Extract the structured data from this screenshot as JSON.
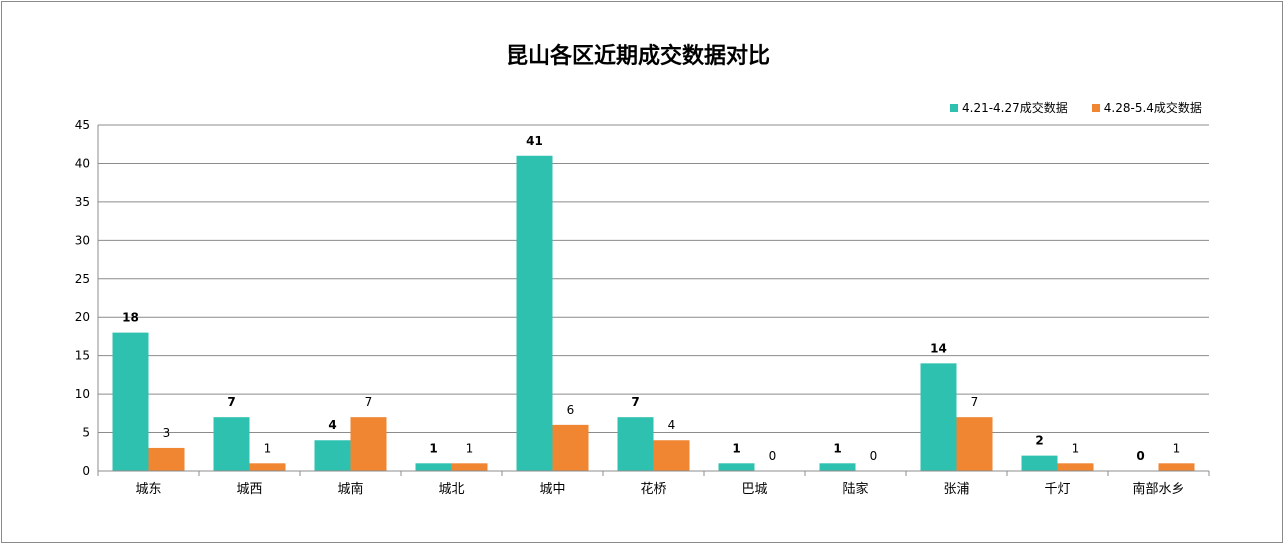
{
  "chart_data": {
    "type": "bar",
    "title": "昆山各区近期成交数据对比",
    "categories": [
      "城东",
      "城西",
      "城南",
      "城北",
      "城中",
      "花桥",
      "巴城",
      "陆家",
      "张浦",
      "千灯",
      "南部水乡"
    ],
    "series": [
      {
        "name": "4.21-4.27成交数据",
        "color": "#2fc1b0",
        "values": [
          18,
          7,
          4,
          1,
          41,
          7,
          1,
          1,
          14,
          2,
          0
        ]
      },
      {
        "name": "4.28-5.4成交数据",
        "color": "#f08532",
        "values": [
          3,
          1,
          7,
          1,
          6,
          4,
          0,
          0,
          7,
          1,
          1
        ]
      }
    ],
    "ylim": [
      0,
      45
    ],
    "yticks": [
      0,
      5,
      10,
      15,
      20,
      25,
      30,
      35,
      40,
      45
    ],
    "grid": true,
    "legend_position": "top-right",
    "xlabel": "",
    "ylabel": ""
  }
}
